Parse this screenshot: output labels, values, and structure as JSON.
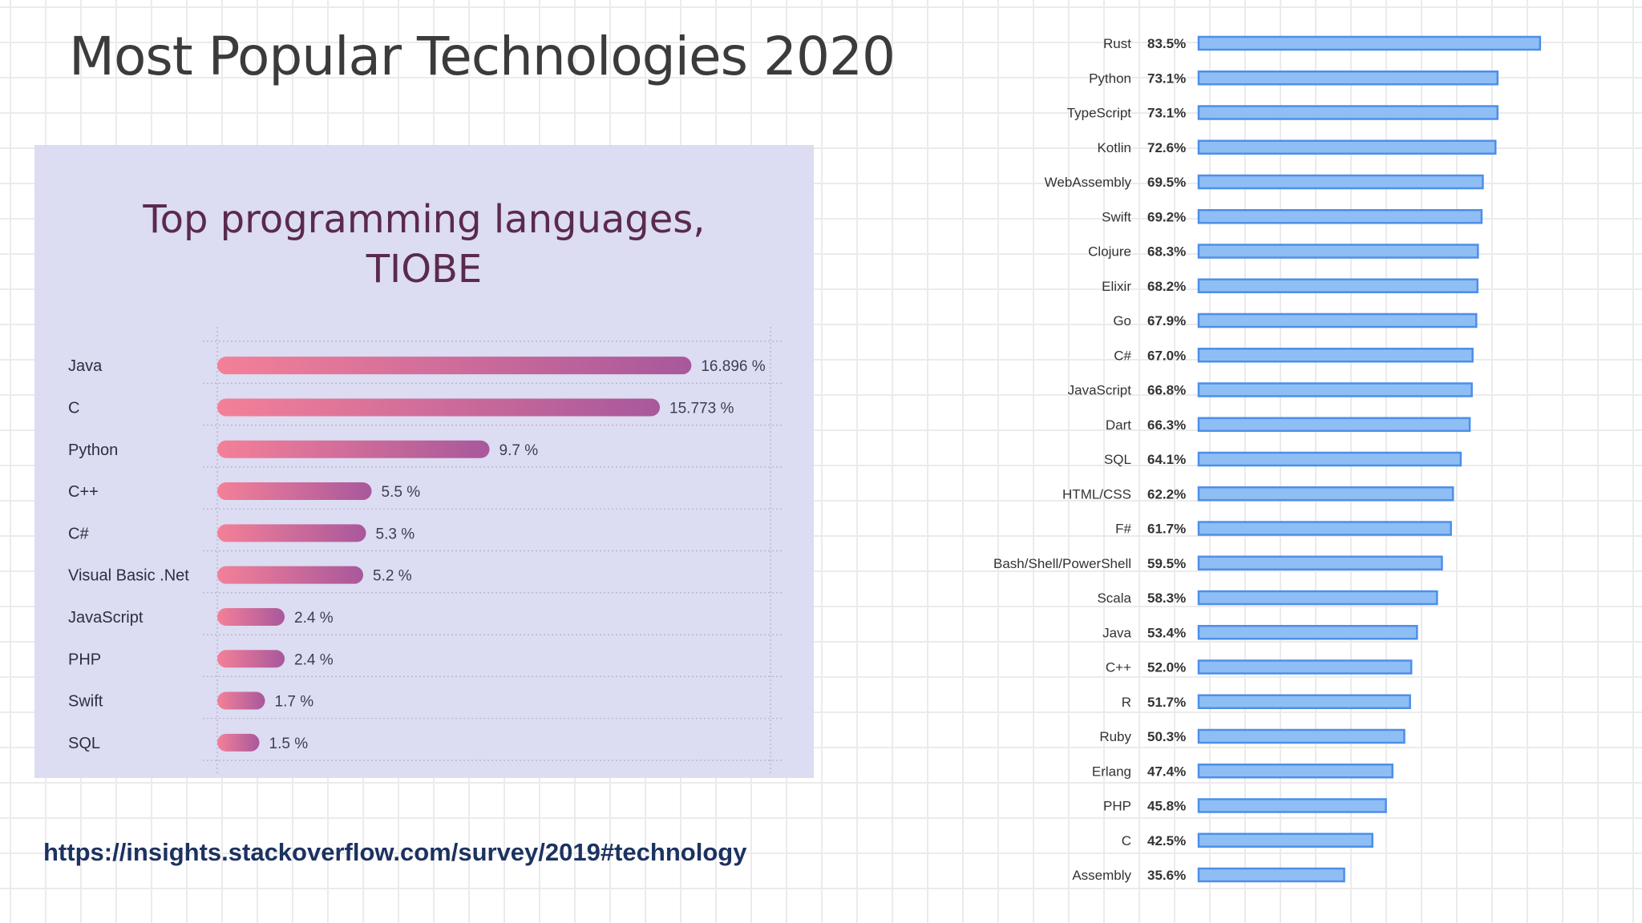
{
  "slide": {
    "title": "Most Popular Technologies 2020",
    "source_url": "https://insights.stackoverflow.com/survey/2019#technology"
  },
  "colors": {
    "tiobe_bar_start": "#f48098",
    "tiobe_bar_end": "#a8589c",
    "tiobe_title": "#5a2a4e",
    "so_bar_fill": "#8fbef5",
    "so_bar_stroke": "#4d8fe8",
    "link": "#1c3260"
  },
  "chart_data": [
    {
      "type": "bar",
      "orientation": "horizontal",
      "title": "Top programming languages,\nTIOBE",
      "title_lines": [
        "Top programming languages,",
        "TIOBE"
      ],
      "categories": [
        "Java",
        "C",
        "Python",
        "C++",
        "C#",
        "Visual Basic .Net",
        "JavaScript",
        "PHP",
        "Swift",
        "SQL"
      ],
      "values": [
        16.896,
        15.773,
        9.7,
        5.5,
        5.3,
        5.2,
        2.4,
        2.4,
        1.7,
        1.5
      ],
      "value_labels": [
        "16.896 %",
        "15.773 %",
        "9.7 %",
        "5.5 %",
        "5.3 %",
        "5.2 %",
        "2.4 %",
        "2.4 %",
        "1.7 %",
        "1.5 %"
      ],
      "xlim": [
        0,
        20
      ],
      "grid": true
    },
    {
      "type": "bar",
      "orientation": "horizontal",
      "title": "",
      "categories": [
        "Rust",
        "Python",
        "TypeScript",
        "Kotlin",
        "WebAssembly",
        "Swift",
        "Clojure",
        "Elixir",
        "Go",
        "C#",
        "JavaScript",
        "Dart",
        "SQL",
        "HTML/CSS",
        "F#",
        "Bash/Shell/PowerShell",
        "Scala",
        "Java",
        "C++",
        "R",
        "Ruby",
        "Erlang",
        "PHP",
        "C",
        "Assembly"
      ],
      "values": [
        83.5,
        73.1,
        73.1,
        72.6,
        69.5,
        69.2,
        68.3,
        68.2,
        67.9,
        67.0,
        66.8,
        66.3,
        64.1,
        62.2,
        61.7,
        59.5,
        58.3,
        53.4,
        52.0,
        51.7,
        50.3,
        47.4,
        45.8,
        42.5,
        35.6
      ],
      "value_labels": [
        "83.5%",
        "73.1%",
        "73.1%",
        "72.6%",
        "69.5%",
        "69.2%",
        "68.3%",
        "68.2%",
        "67.9%",
        "67.0%",
        "66.8%",
        "66.3%",
        "64.1%",
        "62.2%",
        "61.7%",
        "59.5%",
        "58.3%",
        "53.4%",
        "52.0%",
        "51.7%",
        "50.3%",
        "47.4%",
        "45.8%",
        "42.5%",
        "35.6%"
      ],
      "xlim": [
        0,
        100
      ],
      "grid": false
    }
  ]
}
